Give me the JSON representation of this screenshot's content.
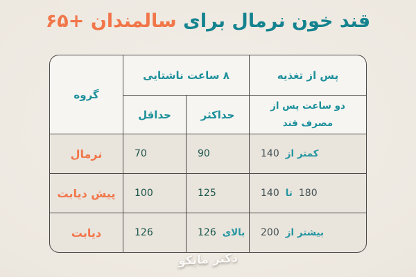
{
  "title": {
    "main": "قند خون نرمال برای",
    "highlight": "سالمندان +۶۵"
  },
  "table": {
    "headers": {
      "group": "گروه",
      "fasting": "۸ ساعت ناشتایی",
      "after_meal": "پس از تغذیه",
      "min": "حداقل",
      "max": "حداکثر",
      "after_meal_sub": "دو ساعت پس از مصرف قند"
    },
    "rows": [
      {
        "group": "نرمال",
        "min": "70",
        "max_num": "90",
        "max_word": "",
        "after_num1": "140",
        "after_word": "کمتر از",
        "after_num2": ""
      },
      {
        "group": "پیش دیابت",
        "min": "100",
        "max_num": "125",
        "max_word": "",
        "after_num1": "140",
        "after_word": "تا",
        "after_num2": "180"
      },
      {
        "group": "دیابت",
        "min": "126",
        "max_num": "126",
        "max_word": "بالای",
        "after_num1": "200",
        "after_word": "بیشتر از",
        "after_num2": ""
      }
    ]
  },
  "watermark": "دکتر مایکو",
  "colors": {
    "title_teal": "#14838F",
    "accent_orange": "#F1764A",
    "header_teal": "#1E909C",
    "fasting_number": "#1D574D",
    "after_number": "#425053",
    "grid_border": "#4A4A4A",
    "header_bg": "#F7F5F1",
    "cell_bg": "#E9E4DC",
    "page_bg": "#EFEAE3"
  },
  "chart_data": {
    "type": "table",
    "title": "قند خون نرمال برای سالمندان +۶۵",
    "columns": [
      "گروه",
      "۸ ساعت ناشتایی - حداقل",
      "۸ ساعت ناشتایی - حداکثر",
      "پس از تغذیه - دو ساعت پس از مصرف قند"
    ],
    "rows": [
      [
        "نرمال",
        "70",
        "90",
        "کمتر از 140"
      ],
      [
        "پیش دیابت",
        "100",
        "125",
        "140 تا 180"
      ],
      [
        "دیابت",
        "126",
        "بالای 126",
        "بیشتر از 200"
      ]
    ],
    "units": "mg/dL (implied)",
    "layout": "RTL table, group column leftmost in pixel order, rounded outer border"
  }
}
